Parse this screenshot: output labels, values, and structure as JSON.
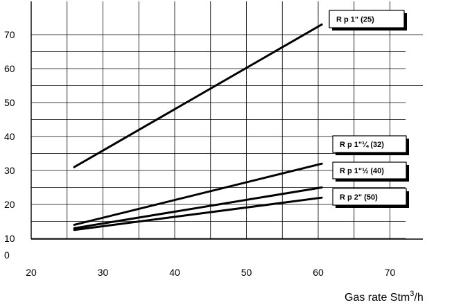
{
  "chart_data": {
    "type": "line",
    "xlabel_text": "Gas rate  Stm",
    "xlabel_sup": "3",
    "xlabel_suffix": "/h",
    "xlim": [
      20,
      70
    ],
    "ylim": [
      10,
      70
    ],
    "x_ticks": [
      "20",
      "30",
      "40",
      "50",
      "60",
      "70"
    ],
    "y_ticks": [
      "70",
      "60",
      "50",
      "40",
      "30",
      "20",
      "10",
      "0"
    ],
    "grid": true,
    "series": [
      {
        "name": "R p 1\" (25)",
        "x": [
          26,
          60.5
        ],
        "y": [
          31,
          73
        ]
      },
      {
        "name": "R p 1\"¼ (32)",
        "x": [
          26,
          60.5
        ],
        "y": [
          14,
          32
        ]
      },
      {
        "name": "R p 1\"½ (40)",
        "x": [
          26,
          60.5
        ],
        "y": [
          13,
          25
        ]
      },
      {
        "name": "R p 2\" (50)",
        "x": [
          26,
          60.5
        ],
        "y": [
          12.5,
          22
        ]
      }
    ]
  }
}
